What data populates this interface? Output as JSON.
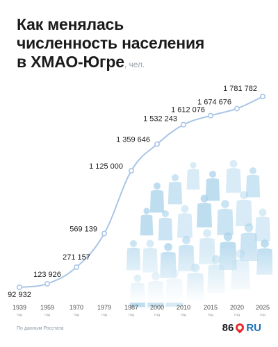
{
  "title": {
    "lines": [
      "Как менялась",
      "численность населения",
      "в ХМАО-Югре"
    ],
    "unit": ", чел."
  },
  "chart_data": {
    "type": "line",
    "title": "Как менялась численность населения в ХМАО-Югре",
    "unit": "чел.",
    "x": [
      1939,
      1959,
      1970,
      1979,
      1987,
      2000,
      2010,
      2015,
      2020,
      2025
    ],
    "x_tick_labels": [
      "1939",
      "1959",
      "1970",
      "1979",
      "1987",
      "2000",
      "2010",
      "2015",
      "2020",
      "2025"
    ],
    "x_tick_sublabel": "год",
    "values": [
      92932,
      123926,
      271157,
      569139,
      1125000,
      1359646,
      1532243,
      1612076,
      1674676,
      1781782
    ],
    "value_labels": [
      "92 932",
      "123 926",
      "271 157",
      "569 139",
      "1 125 000",
      "1 359 646",
      "1 532 243",
      "1 612 076",
      "1 674 676",
      "1 781 782"
    ],
    "ylim": [
      0,
      1900000
    ],
    "grid": false,
    "colors": {
      "line": "#a9c5e6",
      "marker_fill": "#ffffff",
      "text": "#1b1b1b",
      "tick_text": "#4a4a4a",
      "people": "#a9d3ec"
    }
  },
  "footer": {
    "source": "По данным Росстата",
    "logo_number": "86",
    "logo_suffix": "RU"
  }
}
